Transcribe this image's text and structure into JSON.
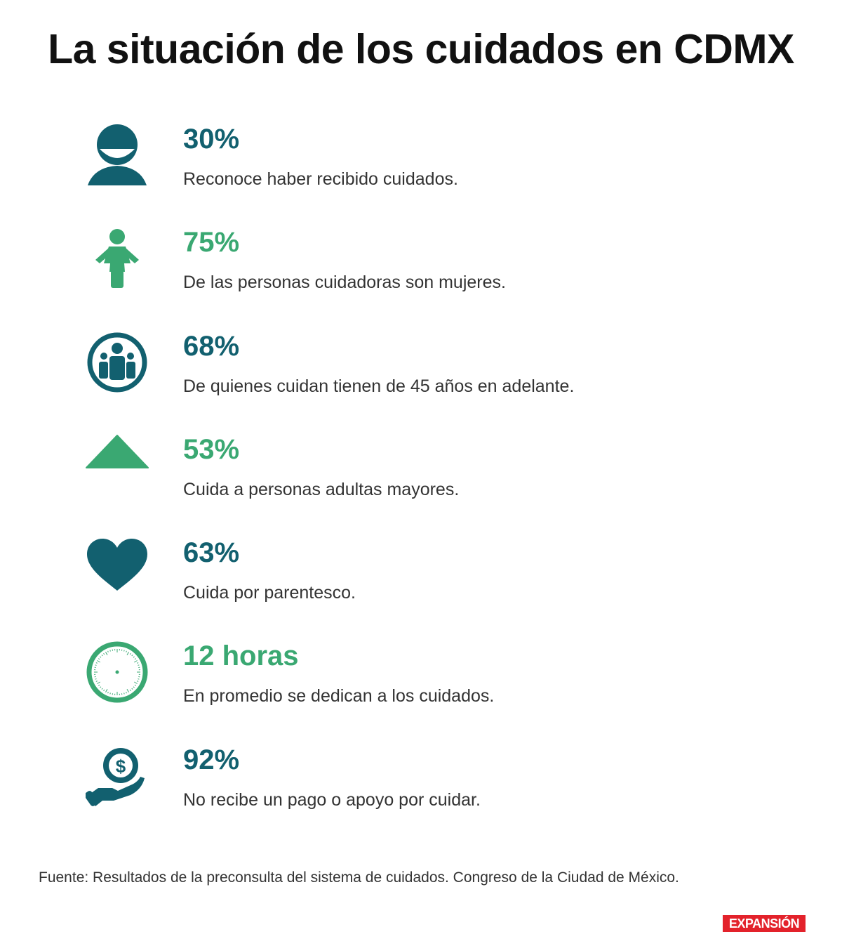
{
  "title": "La situación de los cuidados en CDMX",
  "colors": {
    "teal": "#12606f",
    "green": "#3aa872",
    "brand_red": "#e3222b"
  },
  "stats": [
    {
      "icon": "person-icon",
      "value": "30%",
      "description": "Reconoce haber recibido cuidados.",
      "color": "teal"
    },
    {
      "icon": "woman-icon",
      "value": "75%",
      "description": "De las personas cuidadoras son mujeres.",
      "color": "green"
    },
    {
      "icon": "group-icon",
      "value": "68%",
      "description": "De quienes cuidan tienen de 45 años en adelante.",
      "color": "teal"
    },
    {
      "icon": "triangle-icon",
      "value": "53%",
      "description": "Cuida a personas adultas mayores.",
      "color": "green"
    },
    {
      "icon": "heart-icon",
      "value": "63%",
      "description": "Cuida por parentesco.",
      "color": "teal"
    },
    {
      "icon": "clock-icon",
      "value": "12 horas",
      "description": "En promedio se dedican a los cuidados.",
      "color": "green"
    },
    {
      "icon": "money-hand-icon",
      "value": "92%",
      "description": "No recibe un pago o apoyo por cuidar.",
      "color": "teal"
    }
  ],
  "source": "Fuente: Resultados de la preconsulta del sistema de cuidados. Congreso de la Ciudad de México.",
  "brand": "EXPANSIÓN"
}
